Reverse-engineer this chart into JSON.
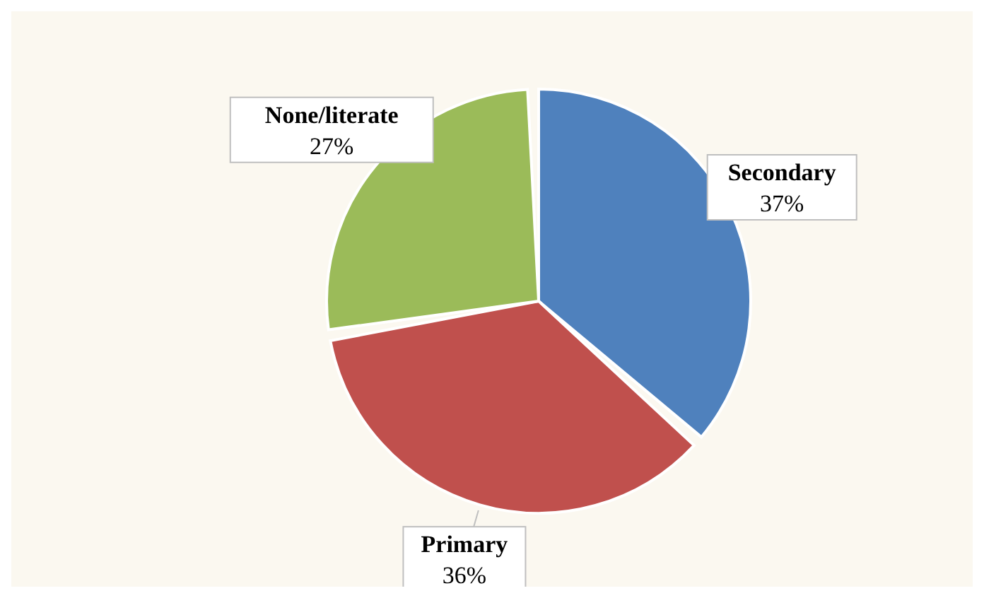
{
  "chart_data": {
    "type": "pie",
    "categories": [
      "Secondary",
      "Primary",
      "None/literate"
    ],
    "values": [
      37,
      36,
      27
    ],
    "value_labels": [
      "37%",
      "36%",
      "27%"
    ],
    "colors": [
      "#4f81bd",
      "#c0504d",
      "#9bbb59"
    ],
    "legend": false
  }
}
